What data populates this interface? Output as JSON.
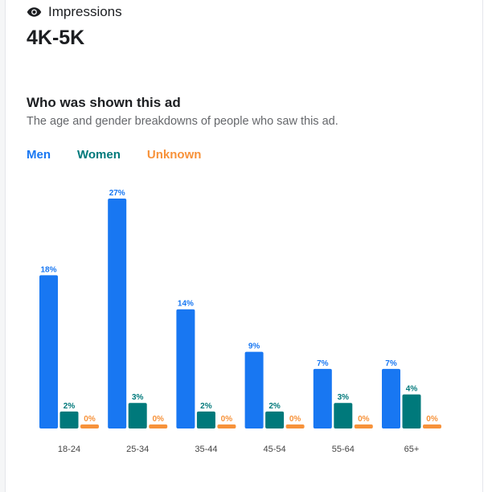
{
  "metric": {
    "label": "Impressions",
    "value": "4K-5K",
    "icon": "eye-icon"
  },
  "section": {
    "title": "Who was shown this ad",
    "subtitle": "The age and gender breakdowns of people who saw this ad."
  },
  "legend": {
    "men": "Men",
    "women": "Women",
    "unknown": "Unknown"
  },
  "colors": {
    "men": "#1877f2",
    "women": "#00797b",
    "unknown": "#f7923a"
  },
  "chart_data": {
    "type": "bar",
    "categories": [
      "18-24",
      "25-34",
      "35-44",
      "45-54",
      "55-64",
      "65+"
    ],
    "series": [
      {
        "name": "Men",
        "values": [
          18,
          27,
          14,
          9,
          7,
          7
        ],
        "labels": [
          "18%",
          "27%",
          "14%",
          "9%",
          "7%",
          "7%"
        ]
      },
      {
        "name": "Women",
        "values": [
          2,
          3,
          2,
          2,
          3,
          4
        ],
        "labels": [
          "2%",
          "3%",
          "2%",
          "2%",
          "3%",
          "4%"
        ]
      },
      {
        "name": "Unknown",
        "values": [
          0,
          0,
          0,
          0,
          0,
          0
        ],
        "labels": [
          "0%",
          "0%",
          "0%",
          "0%",
          "0%",
          "0%"
        ]
      }
    ],
    "ylim": [
      0,
      27
    ],
    "legend_position": "top-left",
    "grid": false
  }
}
